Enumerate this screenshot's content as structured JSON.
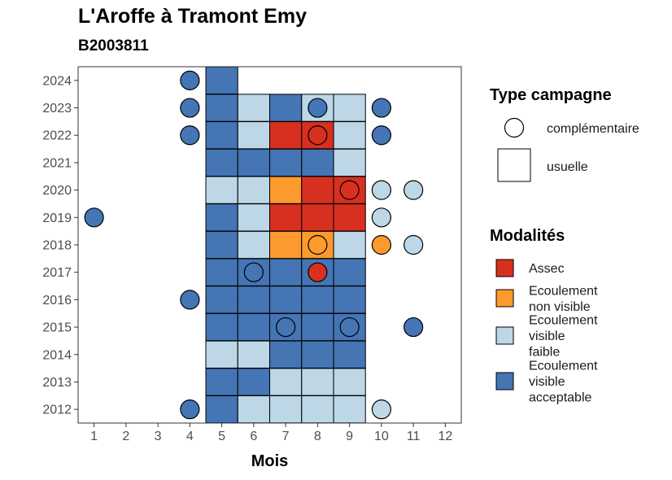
{
  "chart_data": {
    "type": "heatmap",
    "title": "L'Aroffe à Tramont Emy",
    "subtitle": "B2003811",
    "xlabel": "Mois",
    "ylabel": "",
    "x_ticks": [
      "1",
      "2",
      "3",
      "4",
      "5",
      "6",
      "7",
      "8",
      "9",
      "10",
      "11",
      "12"
    ],
    "y_ticks": [
      "2012",
      "2013",
      "2014",
      "2015",
      "2016",
      "2017",
      "2018",
      "2019",
      "2020",
      "2021",
      "2022",
      "2023",
      "2024"
    ],
    "xlim": [
      0.5,
      12.5
    ],
    "ylim": [
      2011.5,
      2024.5
    ],
    "grid": false,
    "legend_position": "right",
    "colors": {
      "Assec": "#d7301f",
      "Ecoulement non visible": "#fd9a2e",
      "Ecoulement visible faible": "#bdd7e7",
      "Ecoulement visible acceptable": "#4575b4"
    },
    "legend": {
      "type_title": "Type campagne",
      "type_entries": [
        {
          "key": "complementaire",
          "label": "complémentaire",
          "shape": "circle"
        },
        {
          "key": "usuelle",
          "label": "usuelle",
          "shape": "square"
        }
      ],
      "modalites_title": "Modalités",
      "modalites_entries": [
        {
          "key": "Assec",
          "lines": [
            "Assec"
          ]
        },
        {
          "key": "Ecoulement non visible",
          "lines": [
            "Ecoulement",
            "non visible"
          ]
        },
        {
          "key": "Ecoulement visible faible",
          "lines": [
            "Ecoulement",
            "visible",
            "faible"
          ]
        },
        {
          "key": "Ecoulement visible acceptable",
          "lines": [
            "Ecoulement",
            "visible",
            "acceptable"
          ]
        }
      ]
    },
    "usuelle": [
      {
        "year": 2024,
        "month": 5,
        "modalite": "Ecoulement visible acceptable"
      },
      {
        "year": 2023,
        "month": 5,
        "modalite": "Ecoulement visible acceptable"
      },
      {
        "year": 2023,
        "month": 6,
        "modalite": "Ecoulement visible faible"
      },
      {
        "year": 2023,
        "month": 7,
        "modalite": "Ecoulement visible acceptable"
      },
      {
        "year": 2023,
        "month": 8,
        "modalite": "Ecoulement visible faible"
      },
      {
        "year": 2023,
        "month": 9,
        "modalite": "Ecoulement visible faible"
      },
      {
        "year": 2022,
        "month": 5,
        "modalite": "Ecoulement visible acceptable"
      },
      {
        "year": 2022,
        "month": 6,
        "modalite": "Ecoulement visible faible"
      },
      {
        "year": 2022,
        "month": 7,
        "modalite": "Assec"
      },
      {
        "year": 2022,
        "month": 8,
        "modalite": "Assec"
      },
      {
        "year": 2022,
        "month": 9,
        "modalite": "Ecoulement visible faible"
      },
      {
        "year": 2021,
        "month": 5,
        "modalite": "Ecoulement visible acceptable"
      },
      {
        "year": 2021,
        "month": 6,
        "modalite": "Ecoulement visible acceptable"
      },
      {
        "year": 2021,
        "month": 7,
        "modalite": "Ecoulement visible acceptable"
      },
      {
        "year": 2021,
        "month": 8,
        "modalite": "Ecoulement visible acceptable"
      },
      {
        "year": 2021,
        "month": 9,
        "modalite": "Ecoulement visible faible"
      },
      {
        "year": 2020,
        "month": 5,
        "modalite": "Ecoulement visible faible"
      },
      {
        "year": 2020,
        "month": 6,
        "modalite": "Ecoulement visible faible"
      },
      {
        "year": 2020,
        "month": 7,
        "modalite": "Ecoulement non visible"
      },
      {
        "year": 2020,
        "month": 8,
        "modalite": "Assec"
      },
      {
        "year": 2020,
        "month": 9,
        "modalite": "Assec"
      },
      {
        "year": 2019,
        "month": 5,
        "modalite": "Ecoulement visible acceptable"
      },
      {
        "year": 2019,
        "month": 6,
        "modalite": "Ecoulement visible faible"
      },
      {
        "year": 2019,
        "month": 7,
        "modalite": "Assec"
      },
      {
        "year": 2019,
        "month": 8,
        "modalite": "Assec"
      },
      {
        "year": 2019,
        "month": 9,
        "modalite": "Assec"
      },
      {
        "year": 2018,
        "month": 5,
        "modalite": "Ecoulement visible acceptable"
      },
      {
        "year": 2018,
        "month": 6,
        "modalite": "Ecoulement visible faible"
      },
      {
        "year": 2018,
        "month": 7,
        "modalite": "Ecoulement non visible"
      },
      {
        "year": 2018,
        "month": 8,
        "modalite": "Ecoulement non visible"
      },
      {
        "year": 2018,
        "month": 9,
        "modalite": "Ecoulement visible faible"
      },
      {
        "year": 2017,
        "month": 5,
        "modalite": "Ecoulement visible acceptable"
      },
      {
        "year": 2017,
        "month": 6,
        "modalite": "Ecoulement visible acceptable"
      },
      {
        "year": 2017,
        "month": 7,
        "modalite": "Ecoulement visible acceptable"
      },
      {
        "year": 2017,
        "month": 8,
        "modalite": "Ecoulement visible acceptable"
      },
      {
        "year": 2017,
        "month": 9,
        "modalite": "Ecoulement visible acceptable"
      },
      {
        "year": 2016,
        "month": 5,
        "modalite": "Ecoulement visible acceptable"
      },
      {
        "year": 2016,
        "month": 6,
        "modalite": "Ecoulement visible acceptable"
      },
      {
        "year": 2016,
        "month": 7,
        "modalite": "Ecoulement visible acceptable"
      },
      {
        "year": 2016,
        "month": 8,
        "modalite": "Ecoulement visible acceptable"
      },
      {
        "year": 2016,
        "month": 9,
        "modalite": "Ecoulement visible acceptable"
      },
      {
        "year": 2015,
        "month": 5,
        "modalite": "Ecoulement visible acceptable"
      },
      {
        "year": 2015,
        "month": 6,
        "modalite": "Ecoulement visible acceptable"
      },
      {
        "year": 2015,
        "month": 7,
        "modalite": "Ecoulement visible acceptable"
      },
      {
        "year": 2015,
        "month": 8,
        "modalite": "Ecoulement visible acceptable"
      },
      {
        "year": 2015,
        "month": 9,
        "modalite": "Ecoulement visible acceptable"
      },
      {
        "year": 2014,
        "month": 5,
        "modalite": "Ecoulement visible faible"
      },
      {
        "year": 2014,
        "month": 6,
        "modalite": "Ecoulement visible faible"
      },
      {
        "year": 2014,
        "month": 7,
        "modalite": "Ecoulement visible acceptable"
      },
      {
        "year": 2014,
        "month": 8,
        "modalite": "Ecoulement visible acceptable"
      },
      {
        "year": 2014,
        "month": 9,
        "modalite": "Ecoulement visible acceptable"
      },
      {
        "year": 2013,
        "month": 5,
        "modalite": "Ecoulement visible acceptable"
      },
      {
        "year": 2013,
        "month": 6,
        "modalite": "Ecoulement visible acceptable"
      },
      {
        "year": 2013,
        "month": 7,
        "modalite": "Ecoulement visible faible"
      },
      {
        "year": 2013,
        "month": 8,
        "modalite": "Ecoulement visible faible"
      },
      {
        "year": 2013,
        "month": 9,
        "modalite": "Ecoulement visible faible"
      },
      {
        "year": 2012,
        "month": 5,
        "modalite": "Ecoulement visible acceptable"
      },
      {
        "year": 2012,
        "month": 6,
        "modalite": "Ecoulement visible faible"
      },
      {
        "year": 2012,
        "month": 7,
        "modalite": "Ecoulement visible faible"
      },
      {
        "year": 2012,
        "month": 8,
        "modalite": "Ecoulement visible faible"
      },
      {
        "year": 2012,
        "month": 9,
        "modalite": "Ecoulement visible faible"
      }
    ],
    "complementaire": [
      {
        "year": 2024,
        "month": 4,
        "modalite": "Ecoulement visible acceptable"
      },
      {
        "year": 2023,
        "month": 4,
        "modalite": "Ecoulement visible acceptable"
      },
      {
        "year": 2023,
        "month": 8,
        "modalite": "Ecoulement visible acceptable"
      },
      {
        "year": 2023,
        "month": 10,
        "modalite": "Ecoulement visible acceptable"
      },
      {
        "year": 2022,
        "month": 4,
        "modalite": "Ecoulement visible acceptable"
      },
      {
        "year": 2022,
        "month": 8,
        "modalite": "Assec"
      },
      {
        "year": 2022,
        "month": 10,
        "modalite": "Ecoulement visible acceptable"
      },
      {
        "year": 2020,
        "month": 9,
        "modalite": "Assec"
      },
      {
        "year": 2020,
        "month": 10,
        "modalite": "Ecoulement visible faible"
      },
      {
        "year": 2020,
        "month": 11,
        "modalite": "Ecoulement visible faible"
      },
      {
        "year": 2019,
        "month": 1,
        "modalite": "Ecoulement visible acceptable"
      },
      {
        "year": 2019,
        "month": 10,
        "modalite": "Ecoulement visible faible"
      },
      {
        "year": 2018,
        "month": 8,
        "modalite": "Ecoulement non visible"
      },
      {
        "year": 2018,
        "month": 10,
        "modalite": "Ecoulement non visible"
      },
      {
        "year": 2018,
        "month": 11,
        "modalite": "Ecoulement visible faible"
      },
      {
        "year": 2017,
        "month": 6,
        "modalite": "Ecoulement visible acceptable"
      },
      {
        "year": 2017,
        "month": 8,
        "modalite": "Assec"
      },
      {
        "year": 2016,
        "month": 4,
        "modalite": "Ecoulement visible acceptable"
      },
      {
        "year": 2015,
        "month": 7,
        "modalite": "Ecoulement visible acceptable"
      },
      {
        "year": 2015,
        "month": 9,
        "modalite": "Ecoulement visible acceptable"
      },
      {
        "year": 2015,
        "month": 11,
        "modalite": "Ecoulement visible acceptable"
      },
      {
        "year": 2012,
        "month": 4,
        "modalite": "Ecoulement visible acceptable"
      },
      {
        "year": 2012,
        "month": 10,
        "modalite": "Ecoulement visible faible"
      }
    ]
  }
}
